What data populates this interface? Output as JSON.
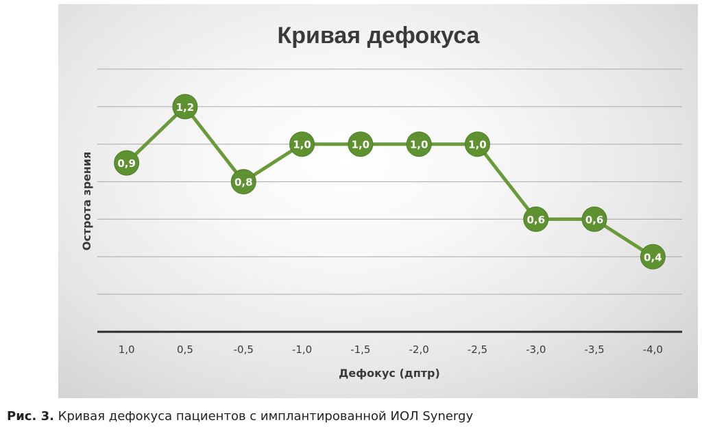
{
  "chart_data": {
    "type": "line",
    "title": "Кривая дефокуса",
    "xlabel": "Дефокус (дптр)",
    "ylabel": "Острота зрения",
    "categories": [
      "1,0",
      "0,5",
      "-0,5",
      "-1,0",
      "-1,5",
      "-2,0",
      "-2,5",
      "-3,0",
      "-3,5",
      "-4,0"
    ],
    "values": [
      0.9,
      1.2,
      0.8,
      1.0,
      1.0,
      1.0,
      1.0,
      0.6,
      0.6,
      0.4
    ],
    "data_labels": [
      "0,9",
      "1,2",
      "0,8",
      "1,0",
      "1,0",
      "1,0",
      "1,0",
      "0,6",
      "0,6",
      "0,4"
    ],
    "ylim": [
      0,
      1.4
    ],
    "grid": true,
    "legend": "none",
    "colors": {
      "line": "#6a9a3a",
      "marker": "#5e9130",
      "label": "#ffffff",
      "title": "#3a3a3a"
    }
  },
  "caption": {
    "prefix": "Рис. 3.",
    "text": " Кривая дефокуса пациентов с имплантированной ИОЛ Synergy"
  }
}
